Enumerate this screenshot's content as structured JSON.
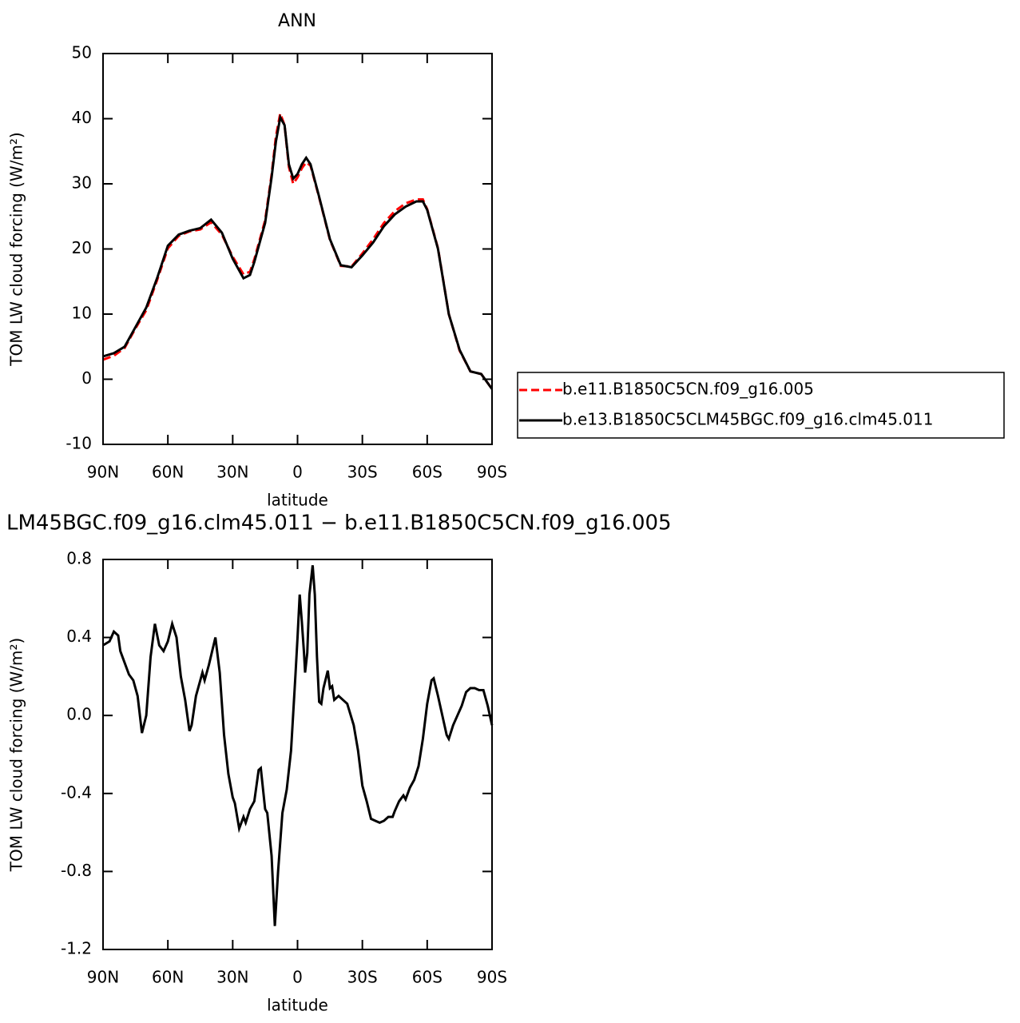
{
  "chart_data": [
    {
      "type": "line",
      "title": "ANN",
      "xlabel": "latitude",
      "ylabel": "TOM LW cloud forcing (W/m²)",
      "x": [
        90,
        85,
        80,
        75,
        70,
        65,
        60,
        55,
        50,
        45,
        40,
        35,
        30,
        25,
        22,
        20,
        15,
        12,
        10,
        8,
        6,
        4,
        2,
        0,
        -2,
        -4,
        -6,
        -10,
        -15,
        -20,
        -25,
        -30,
        -35,
        -40,
        -45,
        -50,
        -55,
        -58,
        -60,
        -65,
        -70,
        -75,
        -80,
        -85,
        -90
      ],
      "series": [
        {
          "name": "b.e11.B1850C5CN.f09_g16.005",
          "color": "#ff0000",
          "linestyle": "dashed",
          "values": [
            3.0,
            3.6,
            4.8,
            7.8,
            10.6,
            15.2,
            20.1,
            22.0,
            22.7,
            23.0,
            24.1,
            22.2,
            18.8,
            16.1,
            16.5,
            18.4,
            24.4,
            31.4,
            37.3,
            40.8,
            39.0,
            32.6,
            30.0,
            31.0,
            32.4,
            33.3,
            32.8,
            27.9,
            21.4,
            17.4,
            17.3,
            19.3,
            21.5,
            24.0,
            25.8,
            27.0,
            27.6,
            27.6,
            26.1,
            20.1,
            10.0,
            4.4,
            1.2,
            0.8,
            -1.5
          ]
        },
        {
          "name": "b.e13.B1850C5CLM45BGC.f09_g16.clm45.011",
          "color": "#000000",
          "linestyle": "solid",
          "values": [
            3.5,
            4.0,
            5.0,
            8.0,
            11.0,
            15.5,
            20.5,
            22.2,
            22.8,
            23.2,
            24.5,
            22.5,
            18.5,
            15.5,
            16.0,
            18.0,
            24.0,
            31.0,
            36.5,
            40.2,
            39.0,
            33.0,
            30.8,
            31.5,
            33.0,
            34.0,
            33.0,
            28.0,
            21.5,
            17.5,
            17.2,
            19.0,
            21.0,
            23.5,
            25.3,
            26.5,
            27.3,
            27.3,
            26.0,
            20.0,
            10.0,
            4.5,
            1.2,
            0.8,
            -1.5
          ]
        }
      ],
      "xlim": [
        90,
        -90
      ],
      "xticks": [
        {
          "value": 90,
          "label": "90N"
        },
        {
          "value": 60,
          "label": "60N"
        },
        {
          "value": 30,
          "label": "30N"
        },
        0,
        {
          "value": -30,
          "label": "30S"
        },
        {
          "value": -60,
          "label": "60S"
        },
        {
          "value": -90,
          "label": "90S"
        }
      ],
      "ylim": [
        -10,
        50
      ],
      "yticks": [
        -10,
        0,
        10,
        20,
        30,
        40,
        50
      ],
      "legend": "right"
    },
    {
      "type": "line",
      "title": "LM45BGC.f09_g16.clm45.011 − b.e11.B1850C5CN.f09_g16.005",
      "xlabel": "latitude",
      "ylabel": "TOM LW cloud forcing (W/m²)",
      "x": [
        90,
        87,
        85,
        83,
        82,
        80,
        78,
        76,
        74,
        72,
        70,
        68,
        66,
        64,
        62,
        60,
        58,
        56,
        54,
        52,
        50,
        49,
        47,
        45,
        44,
        43,
        41,
        38,
        36,
        34,
        32,
        30,
        29,
        27,
        25,
        24,
        22,
        20,
        18,
        17,
        15,
        14,
        12,
        10.5,
        9,
        7,
        5,
        3,
        1,
        0,
        -1,
        -2,
        -3,
        -3.5,
        -4.5,
        -5.5,
        -7,
        -8,
        -9,
        -10,
        -11,
        -12,
        -14,
        -15,
        -16,
        -17,
        -19,
        -21,
        -23,
        -26,
        -28,
        -30,
        -32,
        -34,
        -36,
        -38,
        -40,
        -42,
        -44,
        -45,
        -47,
        -49,
        -50,
        -52,
        -54,
        -56,
        -58,
        -60,
        -62,
        -63,
        -65,
        -67,
        -69,
        -70,
        -72,
        -74,
        -76,
        -78,
        -80,
        -82,
        -84,
        -86,
        -88,
        -90
      ],
      "series": [
        {
          "color": "#000000",
          "linestyle": "solid",
          "values": [
            0.36,
            0.38,
            0.43,
            0.41,
            0.33,
            0.27,
            0.21,
            0.18,
            0.1,
            -0.09,
            0.0,
            0.3,
            0.47,
            0.36,
            0.33,
            0.38,
            0.47,
            0.4,
            0.2,
            0.08,
            -0.08,
            -0.05,
            0.1,
            0.18,
            0.22,
            0.18,
            0.26,
            0.4,
            0.22,
            -0.1,
            -0.3,
            -0.42,
            -0.45,
            -0.58,
            -0.52,
            -0.55,
            -0.48,
            -0.44,
            -0.28,
            -0.27,
            -0.48,
            -0.5,
            -0.72,
            -1.08,
            -0.8,
            -0.5,
            -0.38,
            -0.18,
            0.2,
            0.4,
            0.62,
            0.48,
            0.32,
            0.22,
            0.32,
            0.62,
            0.77,
            0.62,
            0.3,
            0.07,
            0.06,
            0.14,
            0.23,
            0.14,
            0.15,
            0.08,
            0.1,
            0.08,
            0.06,
            -0.05,
            -0.18,
            -0.36,
            -0.44,
            -0.53,
            -0.54,
            -0.55,
            -0.54,
            -0.52,
            -0.52,
            -0.49,
            -0.44,
            -0.41,
            -0.43,
            -0.37,
            -0.33,
            -0.26,
            -0.12,
            0.06,
            0.18,
            0.19,
            0.1,
            0.0,
            -0.1,
            -0.12,
            -0.05,
            0.0,
            0.05,
            0.12,
            0.14,
            0.14,
            0.13,
            0.13,
            0.05,
            -0.05
          ]
        }
      ],
      "xlim": [
        90,
        -90
      ],
      "xticks": [
        {
          "value": 90,
          "label": "90N"
        },
        {
          "value": 60,
          "label": "60N"
        },
        {
          "value": 30,
          "label": "30N"
        },
        0,
        {
          "value": -30,
          "label": "30S"
        },
        {
          "value": -60,
          "label": "60S"
        },
        {
          "value": -90,
          "label": "90S"
        }
      ],
      "ylim": [
        -1.2,
        0.8
      ],
      "yticks": [
        -1.2,
        -0.8,
        -0.4,
        {
          "value": 0,
          "label": "0.0"
        },
        0.4,
        0.8
      ]
    }
  ]
}
